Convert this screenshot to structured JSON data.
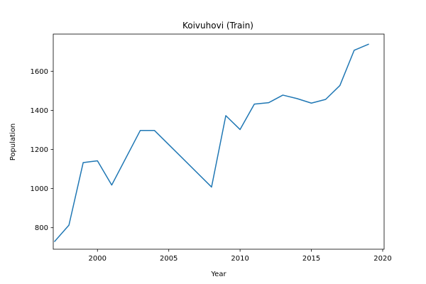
{
  "chart_data": {
    "type": "line",
    "title": "Koivuhovi (Train)",
    "xlabel": "Year",
    "ylabel": "Population",
    "xlim": [
      1996.9,
      2020.1
    ],
    "ylim": [
      690,
      1790
    ],
    "xticks": [
      2000,
      2005,
      2010,
      2015,
      2020
    ],
    "yticks": [
      800,
      1000,
      1200,
      1400,
      1600
    ],
    "grid": false,
    "line_color": "#1f77b4",
    "series": [
      {
        "x": [
          1997,
          1998,
          1999,
          2000,
          2001,
          2003,
          2004,
          2008,
          2009,
          2010,
          2011,
          2012,
          2013,
          2014,
          2015,
          2016,
          2017,
          2018,
          2019
        ],
        "y": [
          730,
          813,
          1133,
          1142,
          1018,
          1297,
          1297,
          1008,
          1373,
          1302,
          1432,
          1439,
          1478,
          1460,
          1437,
          1456,
          1527,
          1707,
          1738
        ]
      }
    ]
  }
}
